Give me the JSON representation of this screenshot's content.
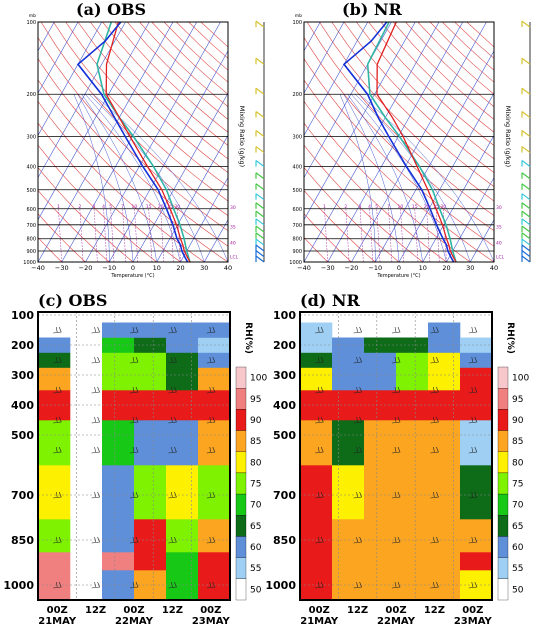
{
  "skewt": [
    {
      "title": "(a) OBS",
      "unit_label": "mb",
      "xlabel": "Temperature (°C)",
      "mixing_label": "Mixing Ratio (g/kg)",
      "p_ticks": [
        100,
        200,
        300,
        400,
        500,
        600,
        700,
        800,
        900,
        1000
      ],
      "t_ticks": [
        "−40",
        "−30",
        "−20",
        "−10",
        "0",
        "10",
        "20",
        "30",
        "40"
      ],
      "mix_labels": [
        "1",
        "2",
        "3",
        "4",
        "5",
        "7",
        "10",
        "15",
        "20",
        "25",
        "30"
      ],
      "side_labels": [
        "30",
        "35",
        "40",
        "LCL"
      ],
      "temperature": [
        [
          1000,
          24
        ],
        [
          950,
          21.5
        ],
        [
          900,
          19
        ],
        [
          850,
          17
        ],
        [
          800,
          14.5
        ],
        [
          700,
          9.5
        ],
        [
          600,
          3
        ],
        [
          500,
          -5
        ],
        [
          400,
          -16.5
        ],
        [
          300,
          -31
        ],
        [
          250,
          -40
        ],
        [
          200,
          -51
        ],
        [
          150,
          -58
        ],
        [
          100,
          -63
        ]
      ],
      "dewpoint": [
        [
          1000,
          23
        ],
        [
          950,
          20.5
        ],
        [
          900,
          18
        ],
        [
          850,
          16
        ],
        [
          800,
          13
        ],
        [
          700,
          8
        ],
        [
          600,
          1.5
        ],
        [
          500,
          -6.5
        ],
        [
          400,
          -18.5
        ],
        [
          300,
          -33
        ],
        [
          250,
          -42
        ],
        [
          200,
          -53
        ],
        [
          150,
          -70
        ],
        [
          120,
          -64
        ],
        [
          100,
          -62
        ]
      ],
      "parcel": [
        [
          1000,
          24
        ],
        [
          900,
          20
        ],
        [
          800,
          16
        ],
        [
          700,
          11
        ],
        [
          600,
          4.5
        ],
        [
          500,
          -3
        ],
        [
          400,
          -14
        ],
        [
          300,
          -29.5
        ],
        [
          250,
          -40
        ],
        [
          200,
          -52
        ],
        [
          150,
          -62
        ],
        [
          100,
          -66
        ]
      ],
      "wind_pressures": [
        105,
        150,
        200,
        250,
        300,
        350,
        400,
        450,
        500,
        550,
        600,
        650,
        700,
        750,
        800,
        850,
        900,
        950,
        1000
      ]
    },
    {
      "title": "(b) NR",
      "unit_label": "mb",
      "xlabel": "Temperature (°C)",
      "mixing_label": "Mixing Ratio (g/kg)",
      "p_ticks": [
        100,
        200,
        300,
        400,
        500,
        600,
        700,
        800,
        900,
        1000
      ],
      "t_ticks": [
        "−40",
        "−30",
        "−20",
        "−10",
        "0",
        "10",
        "20",
        "30",
        "40"
      ],
      "mix_labels": [
        "1",
        "2",
        "3",
        "4",
        "5",
        "7",
        "10",
        "15",
        "20",
        "25",
        "30"
      ],
      "side_labels": [
        "30",
        "35",
        "40",
        "LCL"
      ],
      "temperature": [
        [
          1000,
          24
        ],
        [
          950,
          21.5
        ],
        [
          900,
          19
        ],
        [
          850,
          17
        ],
        [
          800,
          14.5
        ],
        [
          700,
          9.5
        ],
        [
          600,
          3
        ],
        [
          500,
          -5
        ],
        [
          400,
          -15
        ],
        [
          300,
          -28
        ],
        [
          250,
          -37
        ],
        [
          200,
          -49
        ],
        [
          150,
          -56
        ],
        [
          100,
          -58
        ]
      ],
      "dewpoint": [
        [
          1000,
          23
        ],
        [
          950,
          20.5
        ],
        [
          900,
          18
        ],
        [
          850,
          16
        ],
        [
          800,
          13
        ],
        [
          700,
          7
        ],
        [
          600,
          0.5
        ],
        [
          500,
          -7.5
        ],
        [
          400,
          -19.5
        ],
        [
          300,
          -34
        ],
        [
          250,
          -43
        ],
        [
          200,
          -53
        ],
        [
          150,
          -70
        ],
        [
          120,
          -64
        ],
        [
          100,
          -62
        ]
      ],
      "parcel": [
        [
          1000,
          24
        ],
        [
          900,
          20
        ],
        [
          800,
          16
        ],
        [
          700,
          11
        ],
        [
          600,
          4.5
        ],
        [
          500,
          -3
        ],
        [
          400,
          -14
        ],
        [
          300,
          -29.5
        ],
        [
          250,
          -40
        ],
        [
          200,
          -52
        ],
        [
          150,
          -60
        ],
        [
          100,
          -61
        ]
      ],
      "wind_pressures": [
        105,
        150,
        200,
        250,
        300,
        350,
        400,
        450,
        500,
        550,
        600,
        650,
        700,
        750,
        800,
        850,
        900,
        950,
        1000
      ]
    }
  ],
  "chart_data": [
    {
      "type": "heatmap",
      "title": "(c) OBS",
      "colorbar_title": "RH(%)",
      "x_labels": [
        [
          "00Z",
          "21MAY"
        ],
        [
          "12Z",
          ""
        ],
        [
          "00Z",
          "22MAY"
        ],
        [
          "12Z",
          ""
        ],
        [
          "00Z",
          "23MAY"
        ]
      ],
      "y_ticks": [
        100,
        200,
        300,
        400,
        500,
        700,
        850,
        1000
      ],
      "levels": [
        1000,
        925,
        850,
        700,
        500,
        400,
        300,
        250,
        200,
        150
      ],
      "rh": [
        [
          95,
          null,
          60,
          85,
          70,
          92
        ],
        [
          95,
          null,
          95,
          92,
          72,
          92
        ],
        [
          75,
          null,
          60,
          92,
          75,
          85
        ],
        [
          80,
          null,
          60,
          75,
          80,
          75
        ],
        [
          75,
          null,
          70,
          60,
          62,
          85
        ],
        [
          92,
          null,
          92,
          92,
          92,
          92
        ],
        [
          85,
          null,
          75,
          75,
          65,
          85
        ],
        [
          65,
          null,
          75,
          75,
          65,
          60
        ],
        [
          60,
          null,
          70,
          65,
          62,
          55
        ],
        [
          null,
          null,
          60,
          60,
          60,
          60
        ]
      ],
      "colorbar_ticks": [
        "100",
        "95",
        "90",
        "85",
        "80",
        "75",
        "70",
        "65",
        "60",
        "55",
        "50"
      ]
    },
    {
      "type": "heatmap",
      "title": "(d) NR",
      "colorbar_title": "RH(%)",
      "x_labels": [
        [
          "00Z",
          "21MAY"
        ],
        [
          "12Z",
          ""
        ],
        [
          "00Z",
          "22MAY"
        ],
        [
          "12Z",
          ""
        ],
        [
          "00Z",
          "23MAY"
        ]
      ],
      "y_ticks": [
        100,
        200,
        300,
        400,
        500,
        700,
        850,
        1000
      ],
      "levels": [
        1000,
        925,
        850,
        700,
        500,
        400,
        300,
        250,
        200,
        150
      ],
      "rh": [
        [
          92,
          85,
          85,
          85,
          85,
          80
        ],
        [
          92,
          85,
          85,
          85,
          85,
          92
        ],
        [
          92,
          85,
          85,
          85,
          85,
          85
        ],
        [
          92,
          80,
          85,
          85,
          85,
          65
        ],
        [
          85,
          65,
          85,
          85,
          85,
          55
        ],
        [
          92,
          92,
          92,
          92,
          92,
          92
        ],
        [
          80,
          62,
          62,
          75,
          80,
          92
        ],
        [
          65,
          62,
          62,
          75,
          80,
          62
        ],
        [
          55,
          60,
          65,
          65,
          62,
          55
        ],
        [
          55,
          null,
          null,
          null,
          60,
          null
        ]
      ],
      "colorbar_ticks": [
        "100",
        "95",
        "90",
        "85",
        "80",
        "75",
        "70",
        "65",
        "60",
        "55",
        "50"
      ]
    }
  ]
}
